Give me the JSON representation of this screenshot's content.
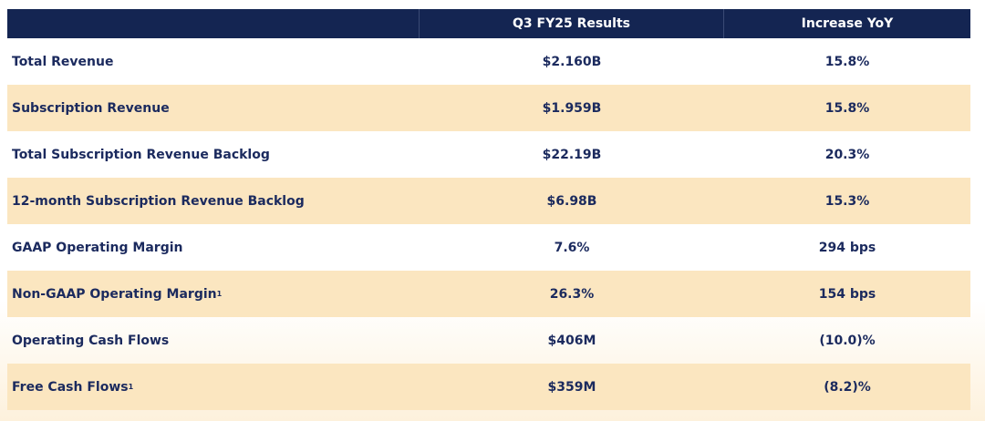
{
  "header": {
    "col_metric": "",
    "col_results": "Q3 FY25 Results",
    "col_increase": "Increase YoY"
  },
  "rows": [
    {
      "metric": "Total Revenue",
      "footnote": "",
      "result": "$2.160B",
      "increase": "15.8%"
    },
    {
      "metric": "Subscription Revenue",
      "footnote": "",
      "result": "$1.959B",
      "increase": "15.8%"
    },
    {
      "metric": "Total Subscription Revenue Backlog",
      "footnote": "",
      "result": "$22.19B",
      "increase": "20.3%"
    },
    {
      "metric": "12-month Subscription Revenue Backlog",
      "footnote": "",
      "result": "$6.98B",
      "increase": "15.3%"
    },
    {
      "metric": "GAAP Operating Margin",
      "footnote": "",
      "result": "7.6%",
      "increase": "294 bps"
    },
    {
      "metric": "Non-GAAP Operating Margin",
      "footnote": "1",
      "result": "26.3%",
      "increase": "154 bps"
    },
    {
      "metric": "Operating Cash Flows",
      "footnote": "",
      "result": "$406M",
      "increase": "(10.0)%"
    },
    {
      "metric": "Free Cash Flows",
      "footnote": "1",
      "result": "$359M",
      "increase": "(8.2)%"
    }
  ],
  "colors": {
    "header_bg": "#142552",
    "row_band": "#fbe6c0",
    "text": "#1b2a5e"
  }
}
